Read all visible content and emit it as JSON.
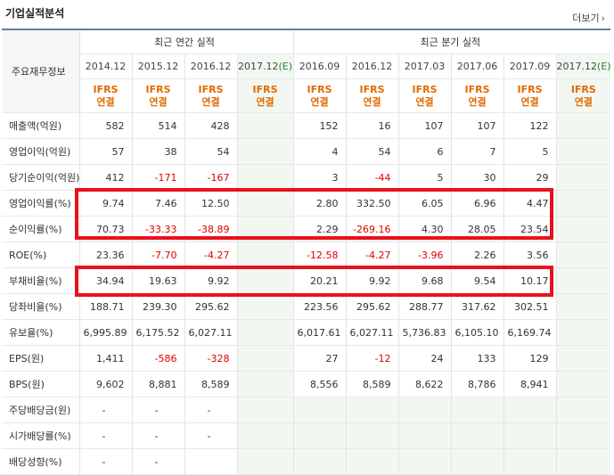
{
  "header": {
    "title": "기업실적분석",
    "more_label": "더보기",
    "more_arrow": "›"
  },
  "table": {
    "corner_label": "주요재무정보",
    "group_annual": "최근 연간 실적",
    "group_quarter": "최근 분기 실적",
    "periods": [
      {
        "date": "2014.12",
        "est": false
      },
      {
        "date": "2015.12",
        "est": false
      },
      {
        "date": "2016.12",
        "est": false
      },
      {
        "date": "2017.12",
        "est": true
      },
      {
        "date": "2016.09",
        "est": false
      },
      {
        "date": "2016.12",
        "est": false
      },
      {
        "date": "2017.03",
        "est": false
      },
      {
        "date": "2017.06",
        "est": false
      },
      {
        "date": "2017.09",
        "est": false
      },
      {
        "date": "2017.12",
        "est": true
      }
    ],
    "est_mark": "(E)",
    "ifrs_top": "IFRS",
    "ifrs_bottom": "연결",
    "rows": [
      {
        "label": "매출액(억원)",
        "values": [
          "582",
          "514",
          "428",
          "",
          "152",
          "16",
          "107",
          "107",
          "122",
          ""
        ]
      },
      {
        "label": "영업이익(억원)",
        "values": [
          "57",
          "38",
          "54",
          "",
          "4",
          "54",
          "6",
          "7",
          "5",
          ""
        ]
      },
      {
        "label": "당기순이익(억원)",
        "values": [
          "412",
          "-171",
          "-167",
          "",
          "3",
          "-44",
          "5",
          "30",
          "29",
          ""
        ]
      },
      {
        "label": "영업이익률(%)",
        "values": [
          "9.74",
          "7.46",
          "12.50",
          "",
          "2.80",
          "332.50",
          "6.05",
          "6.96",
          "4.47",
          ""
        ]
      },
      {
        "label": "순이익률(%)",
        "values": [
          "70.73",
          "-33.33",
          "-38.89",
          "",
          "2.29",
          "-269.16",
          "4.30",
          "28.05",
          "23.54",
          ""
        ]
      },
      {
        "label": "ROE(%)",
        "values": [
          "23.36",
          "-7.70",
          "-4.27",
          "",
          "-12.58",
          "-4.27",
          "-3.96",
          "2.26",
          "3.56",
          ""
        ]
      },
      {
        "label": "부채비율(%)",
        "values": [
          "34.94",
          "19.63",
          "9.92",
          "",
          "20.21",
          "9.92",
          "9.68",
          "9.54",
          "10.17",
          ""
        ]
      },
      {
        "label": "당좌비율(%)",
        "values": [
          "188.71",
          "239.30",
          "295.62",
          "",
          "223.56",
          "295.62",
          "288.77",
          "317.62",
          "302.51",
          ""
        ]
      },
      {
        "label": "유보율(%)",
        "values": [
          "6,995.89",
          "6,175.52",
          "6,027.11",
          "",
          "6,017.61",
          "6,027.11",
          "5,736.83",
          "6,105.10",
          "6,169.74",
          ""
        ]
      },
      {
        "label": "EPS(원)",
        "values": [
          "1,411",
          "-586",
          "-328",
          "",
          "27",
          "-12",
          "24",
          "133",
          "129",
          ""
        ]
      },
      {
        "label": "BPS(원)",
        "values": [
          "9,602",
          "8,881",
          "8,589",
          "",
          "8,556",
          "8,589",
          "8,622",
          "8,786",
          "8,941",
          ""
        ]
      },
      {
        "label": "주당배당금(원)",
        "values": [
          "-",
          "-",
          "-",
          "",
          "",
          "",
          "",
          "",
          "",
          ""
        ]
      },
      {
        "label": "시가배당률(%)",
        "values": [
          "-",
          "-",
          "-",
          "",
          "",
          "",
          "",
          "",
          "",
          ""
        ]
      },
      {
        "label": "배당성향(%)",
        "values": [
          "-",
          "-",
          "",
          "",
          "",
          "",
          "",
          "",
          "",
          ""
        ]
      }
    ],
    "highlight_color": "#e8121b"
  }
}
